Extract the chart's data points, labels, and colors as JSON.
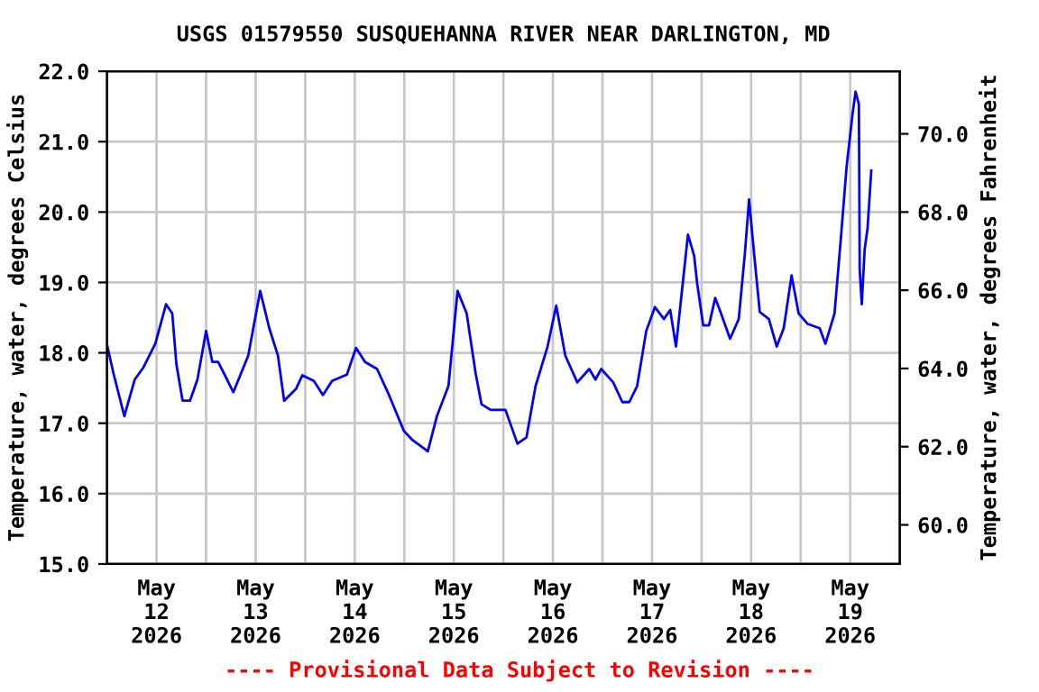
{
  "chart_data": {
    "type": "line",
    "title": "USGS 01579550 SUSQUEHANNA RIVER NEAR DARLINGTON, MD",
    "ylabel": "Temperature, water, degrees Celsius",
    "y2label": "Temperature, water, degrees Fahrenheit",
    "annotations": [
      "---- Provisional Data Subject to Revision ----"
    ],
    "x": [
      "2026-05-12T00:06",
      "2026-05-12T01:36",
      "2026-05-12T04:12",
      "2026-05-12T06:42",
      "2026-05-12T08:48",
      "2026-05-12T11:42",
      "2026-05-12T14:18",
      "2026-05-12T15:48",
      "2026-05-12T16:48",
      "2026-05-12T18:18",
      "2026-05-12T20:06",
      "2026-05-12T21:54",
      "2026-05-13T00:00",
      "2026-05-13T01:30",
      "2026-05-13T02:54",
      "2026-05-13T04:24",
      "2026-05-13T06:36",
      "2026-05-13T10:12",
      "2026-05-13T13:06",
      "2026-05-13T15:18",
      "2026-05-13T17:24",
      "2026-05-13T18:54",
      "2026-05-13T21:48",
      "2026-05-13T23:18",
      "2026-05-14T02:06",
      "2026-05-14T04:18",
      "2026-05-14T06:30",
      "2026-05-14T10:06",
      "2026-05-14T12:18",
      "2026-05-14T14:30",
      "2026-05-14T17:24",
      "2026-05-14T20:18",
      "2026-05-14T23:54",
      "2026-05-15T02:00",
      "2026-05-15T05:42",
      "2026-05-15T07:54",
      "2026-05-15T10:42",
      "2026-05-15T12:54",
      "2026-05-15T15:06",
      "2026-05-15T17:18",
      "2026-05-15T18:42",
      "2026-05-15T20:54",
      "2026-05-16T00:30",
      "2026-05-16T03:24",
      "2026-05-16T05:36",
      "2026-05-16T07:48",
      "2026-05-16T10:42",
      "2026-05-16T12:48",
      "2026-05-16T15:00",
      "2026-05-16T17:54",
      "2026-05-16T20:48",
      "2026-05-16T22:18",
      "2026-05-16T23:42",
      "2026-05-17T02:36",
      "2026-05-17T04:48",
      "2026-05-17T06:30",
      "2026-05-17T08:24",
      "2026-05-17T10:36",
      "2026-05-17T12:42",
      "2026-05-17T14:54",
      "2026-05-17T16:24",
      "2026-05-17T17:48",
      "2026-05-17T19:18",
      "2026-05-17T20:42",
      "2026-05-17T22:12",
      "2026-05-17T22:54",
      "2026-05-18T00:24",
      "2026-05-18T01:48",
      "2026-05-18T03:18",
      "2026-05-18T04:42",
      "2026-05-18T06:54",
      "2026-05-18T09:00",
      "2026-05-18T10:30",
      "2026-05-18T11:30",
      "2026-05-18T12:42",
      "2026-05-18T14:06",
      "2026-05-18T16:18",
      "2026-05-18T18:12",
      "2026-05-18T19:54",
      "2026-05-18T21:48",
      "2026-05-18T23:30",
      "2026-05-19T01:42",
      "2026-05-19T04:36",
      "2026-05-19T06:00",
      "2026-05-19T08:12",
      "2026-05-19T09:42",
      "2026-05-19T11:06",
      "2026-05-19T12:36",
      "2026-05-19T13:18",
      "2026-05-19T14:06",
      "2026-05-19T14:18",
      "2026-05-19T14:48",
      "2026-05-19T15:30",
      "2026-05-19T16:12",
      "2026-05-19T17:06"
    ],
    "series": [
      {
        "color": "#0000ff",
        "values": [
          18.09,
          17.7,
          17.1,
          17.62,
          17.79,
          18.13,
          18.69,
          18.56,
          17.84,
          17.32,
          17.32,
          17.62,
          18.31,
          17.87,
          17.87,
          17.7,
          17.44,
          17.96,
          18.88,
          18.35,
          17.96,
          17.32,
          17.49,
          17.68,
          17.6,
          17.4,
          17.6,
          17.69,
          18.07,
          17.87,
          17.77,
          17.4,
          16.89,
          16.76,
          16.6,
          17.1,
          17.53,
          18.88,
          18.56,
          17.7,
          17.27,
          17.19,
          17.19,
          16.71,
          16.8,
          17.53,
          18.09,
          18.67,
          17.96,
          17.58,
          17.77,
          17.62,
          17.77,
          17.58,
          17.3,
          17.3,
          17.53,
          18.31,
          18.65,
          18.48,
          18.61,
          18.09,
          18.91,
          19.68,
          19.38,
          19.0,
          18.39,
          18.39,
          18.78,
          18.56,
          18.2,
          18.48,
          19.42,
          20.18,
          19.42,
          18.58,
          18.48,
          18.09,
          18.35,
          19.1,
          18.56,
          18.41,
          18.35,
          18.13,
          18.56,
          19.6,
          20.63,
          21.41,
          21.71,
          21.53,
          19.17,
          18.69,
          19.47,
          19.77,
          20.59
        ]
      }
    ],
    "xlim": [
      "2026-05-12T00:00",
      "2026-05-20T00:00"
    ],
    "xticks": [
      {
        "value": "2026-05-12T12:00",
        "label": "May\n12\n2026"
      },
      {
        "value": "2026-05-13T00:00",
        "label": null
      },
      {
        "value": "2026-05-13T12:00",
        "label": "May\n13\n2026"
      },
      {
        "value": "2026-05-14T00:00",
        "label": null
      },
      {
        "value": "2026-05-14T12:00",
        "label": "May\n14\n2026"
      },
      {
        "value": "2026-05-15T00:00",
        "label": null
      },
      {
        "value": "2026-05-15T12:00",
        "label": "May\n15\n2026"
      },
      {
        "value": "2026-05-16T00:00",
        "label": null
      },
      {
        "value": "2026-05-16T12:00",
        "label": "May\n16\n2026"
      },
      {
        "value": "2026-05-17T00:00",
        "label": null
      },
      {
        "value": "2026-05-17T12:00",
        "label": "May\n17\n2026"
      },
      {
        "value": "2026-05-18T00:00",
        "label": null
      },
      {
        "value": "2026-05-18T12:00",
        "label": "May\n18\n2026"
      },
      {
        "value": "2026-05-19T00:00",
        "label": null
      },
      {
        "value": "2026-05-19T12:00",
        "label": "May\n19\n2026"
      }
    ],
    "ylim": [
      15,
      22
    ],
    "yticks": [
      {
        "value": 15,
        "label": "15.0"
      },
      {
        "value": 16,
        "label": "16.0"
      },
      {
        "value": 17,
        "label": "17.0"
      },
      {
        "value": 18,
        "label": "18.0"
      },
      {
        "value": 19,
        "label": "19.0"
      },
      {
        "value": 20,
        "label": "20.0"
      },
      {
        "value": 21,
        "label": "21.0"
      },
      {
        "value": 22,
        "label": "22.0"
      }
    ],
    "y2lim": [
      59,
      71.6
    ],
    "y2ticks": [
      {
        "value": 60,
        "label": "60.0"
      },
      {
        "value": 62,
        "label": "62.0"
      },
      {
        "value": 64,
        "label": "64.0"
      },
      {
        "value": 66,
        "label": "66.0"
      },
      {
        "value": 68,
        "label": "68.0"
      },
      {
        "value": 70,
        "label": "70.0"
      }
    ],
    "grid": true,
    "legend": false
  }
}
